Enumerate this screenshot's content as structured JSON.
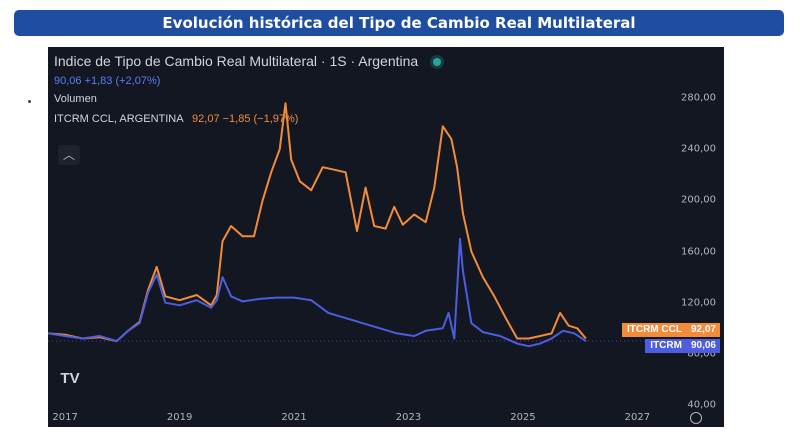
{
  "banner": {
    "title": "Evolución histórica del Tipo de Cambio Real Multilateral"
  },
  "chart_panel": {
    "symbol_title": "Indice de Tipo de Cambio Real Multilateral · 1S · Argentina",
    "main_quote": "90,06 +1,83 (+2,07%)",
    "volume_label": "Volumen",
    "ccl_name": "ITCRM CCL, ARGENTINA",
    "ccl_quote": "92,07 −1,85 (−1,97%)",
    "collapse_icon": "chevron-up-icon",
    "logo_text": "TV",
    "settings_icon": "gear-icon"
  },
  "chart_data": {
    "type": "line",
    "title": "Indice de Tipo de Cambio Real Multilateral · 1S · Argentina",
    "xlabel": "",
    "ylabel": "",
    "x_ticks": [
      "2017",
      "2019",
      "2021",
      "2023",
      "2025",
      "2027"
    ],
    "y_ticks": [
      "40,00",
      "80,00",
      "120,00",
      "160,00",
      "200,00",
      "240,00",
      "280,00"
    ],
    "xlim": [
      2016.7,
      2027.5
    ],
    "ylim": [
      40,
      320
    ],
    "grid": false,
    "colors": {
      "ccl": "#f28b3a",
      "itcrm": "#4d5ddf",
      "background": "#131722",
      "text": "#d1d4dc"
    },
    "series": [
      {
        "name": "ITCRM CCL",
        "label": "ITCRM CCL",
        "last_value": "92,07",
        "x": [
          2016.7,
          2017.0,
          2017.3,
          2017.6,
          2017.9,
          2018.1,
          2018.3,
          2018.45,
          2018.6,
          2018.75,
          2019.0,
          2019.3,
          2019.55,
          2019.65,
          2019.75,
          2019.9,
          2020.1,
          2020.3,
          2020.45,
          2020.6,
          2020.75,
          2020.85,
          2020.95,
          2021.1,
          2021.3,
          2021.5,
          2021.7,
          2021.9,
          2022.1,
          2022.25,
          2022.4,
          2022.6,
          2022.75,
          2022.9,
          2023.1,
          2023.3,
          2023.45,
          2023.6,
          2023.75,
          2023.85,
          2023.95,
          2024.1,
          2024.3,
          2024.5,
          2024.7,
          2024.9,
          2025.1,
          2025.3,
          2025.5,
          2025.65,
          2025.8,
          2025.95,
          2026.1
        ],
        "y": [
          96,
          95,
          92,
          93,
          90,
          98,
          105,
          130,
          148,
          125,
          122,
          126,
          118,
          126,
          168,
          180,
          172,
          172,
          200,
          222,
          240,
          276,
          232,
          215,
          208,
          226,
          224,
          222,
          176,
          210,
          180,
          178,
          195,
          181,
          189,
          183,
          210,
          258,
          248,
          226,
          190,
          160,
          140,
          125,
          108,
          92,
          92,
          94,
          96,
          112,
          102,
          100,
          92
        ]
      },
      {
        "name": "ITCRM",
        "label": "ITCRM",
        "last_value": "90,06",
        "x": [
          2016.7,
          2017.0,
          2017.3,
          2017.6,
          2017.9,
          2018.1,
          2018.3,
          2018.45,
          2018.6,
          2018.75,
          2019.0,
          2019.3,
          2019.55,
          2019.65,
          2019.75,
          2019.9,
          2020.1,
          2020.4,
          2020.7,
          2021.0,
          2021.3,
          2021.6,
          2021.9,
          2022.2,
          2022.5,
          2022.8,
          2023.1,
          2023.3,
          2023.6,
          2023.7,
          2023.8,
          2023.9,
          2023.95,
          2024.1,
          2024.3,
          2024.6,
          2024.9,
          2025.1,
          2025.3,
          2025.5,
          2025.7,
          2025.9,
          2026.1
        ],
        "y": [
          96,
          94,
          92,
          94,
          90,
          98,
          104,
          128,
          142,
          120,
          118,
          122,
          116,
          122,
          140,
          125,
          121,
          123,
          124,
          124,
          122,
          112,
          108,
          104,
          100,
          96,
          94,
          98,
          100,
          112,
          92,
          170,
          145,
          104,
          97,
          94,
          88,
          86,
          88,
          92,
          98,
          96,
          90
        ]
      }
    ]
  }
}
